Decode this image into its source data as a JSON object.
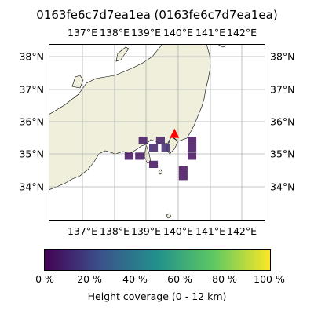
{
  "title": "0163fe6c7d7ea1ea (0163fe6c7d7ea1ea)",
  "map": {
    "lon_ticks": [
      "137°E",
      "138°E",
      "139°E",
      "140°E",
      "141°E",
      "142°E"
    ],
    "lat_ticks": [
      "34°N",
      "35°N",
      "36°N",
      "37°N",
      "38°N"
    ],
    "lon_range": [
      136.4,
      142.6
    ],
    "lat_range": [
      33.0,
      38.4
    ],
    "land_color": "#efefdc",
    "ocean_color": "#ffffff",
    "marker": {
      "lon": 140.0,
      "lat": 35.65,
      "color": "#ff0000",
      "shape": "triangle"
    },
    "grid_cells": [
      {
        "lon": 139.1,
        "lat": 35.45,
        "coverage": 0.06
      },
      {
        "lon": 139.6,
        "lat": 35.45,
        "coverage": 0.08
      },
      {
        "lon": 139.4,
        "lat": 35.22,
        "coverage": 0.1
      },
      {
        "lon": 139.75,
        "lat": 35.22,
        "coverage": 0.12
      },
      {
        "lon": 140.5,
        "lat": 35.45,
        "coverage": 0.04
      },
      {
        "lon": 140.5,
        "lat": 35.22,
        "coverage": 0.05
      },
      {
        "lon": 140.5,
        "lat": 34.97,
        "coverage": 0.05
      },
      {
        "lon": 138.7,
        "lat": 34.97,
        "coverage": 0.05
      },
      {
        "lon": 139.0,
        "lat": 34.97,
        "coverage": 0.06
      },
      {
        "lon": 139.4,
        "lat": 34.72,
        "coverage": 0.05
      },
      {
        "lon": 140.25,
        "lat": 34.55,
        "coverage": 0.04
      },
      {
        "lon": 140.25,
        "lat": 34.35,
        "coverage": 0.04
      }
    ]
  },
  "colorbar": {
    "ticks": [
      "0 %",
      "20 %",
      "40 %",
      "60 %",
      "80 %",
      "100 %"
    ],
    "label": "Height coverage (0 - 12 km)",
    "colors": [
      "#440154",
      "#3b528b",
      "#21918c",
      "#5ec962",
      "#fde725"
    ]
  }
}
